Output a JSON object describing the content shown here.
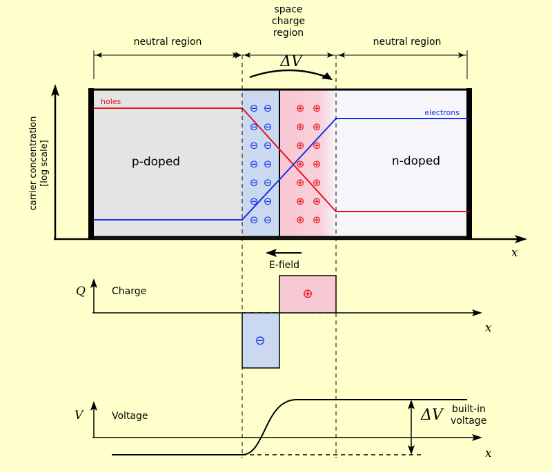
{
  "labels": {
    "space_charge_region": [
      "space",
      "charge",
      "region"
    ],
    "neutral_region_left": "neutral region",
    "neutral_region_right": "neutral region",
    "delta_v_top": "ΔV",
    "holes": "holes",
    "electrons": "electrons",
    "p_doped": "p-doped",
    "n_doped": "n-doped",
    "y_axis_label": [
      "carrier concentration",
      "[log scale]"
    ],
    "x_axis_top": "x",
    "e_field": "E-field",
    "charge_axis": "Q",
    "charge_title": "Charge",
    "x_axis_mid": "x",
    "voltage_axis": "V",
    "voltage_title": "Voltage",
    "delta_v_bottom": "ΔV",
    "built_in": [
      "built-in",
      "voltage"
    ],
    "x_axis_bottom": "x",
    "minus_symbol": "⊖",
    "plus_symbol": "⊕"
  },
  "colors": {
    "background": "#ffffcc",
    "holes": "#e8101c",
    "electrons": "#1030e8",
    "p_region": "#e4e4e4",
    "n_region": "#f6f6fa",
    "depletion_negative": "#cad8f0",
    "depletion_positive": "#f8c8d4"
  }
}
